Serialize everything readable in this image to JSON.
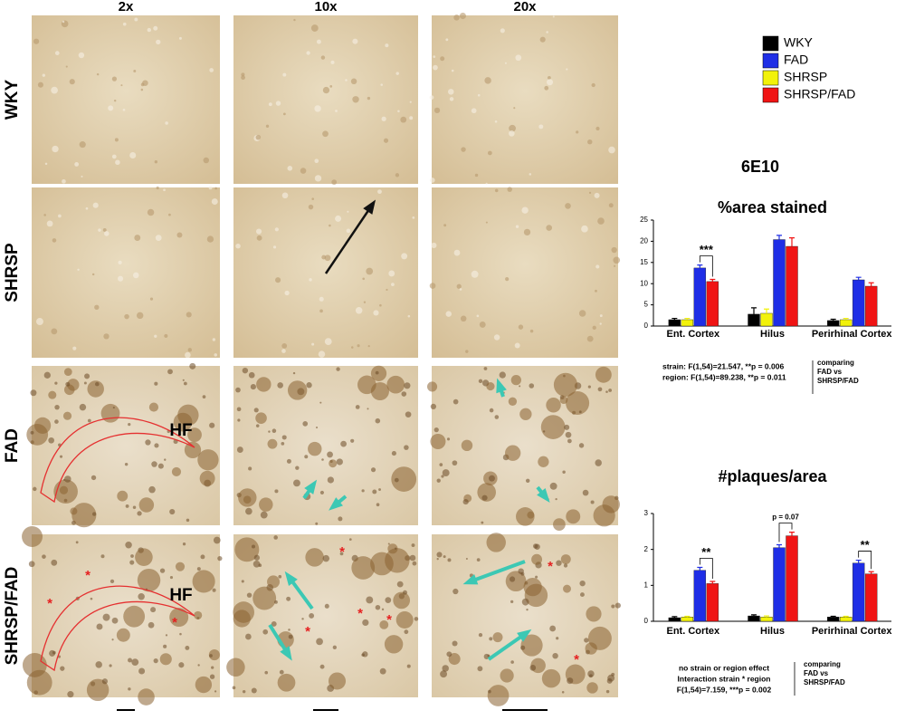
{
  "figure": {
    "title": "6E10",
    "columns": [
      "2x",
      "10x",
      "20x"
    ],
    "rows": [
      "WKY",
      "SHRSP",
      "FAD",
      "SHRSP/FAD"
    ],
    "region_label": "HF",
    "marker": "*"
  },
  "chart_data": [
    {
      "type": "bar",
      "title": "%area stained",
      "categories": [
        "Ent. Cortex",
        "Hilus",
        "Perirhinal Cortex"
      ],
      "series": [
        {
          "name": "WKY",
          "color": "#000000",
          "values": [
            1.5,
            2.8,
            1.3
          ],
          "errors": [
            0.3,
            1.5,
            0.3
          ]
        },
        {
          "name": "SHRSP",
          "color": "#f2f20a",
          "values": [
            1.5,
            3.0,
            1.5
          ],
          "errors": [
            0.3,
            1.0,
            0.3
          ]
        },
        {
          "name": "FAD",
          "color": "#1f2ee6",
          "values": [
            13.7,
            20.4,
            10.9
          ],
          "errors": [
            0.7,
            1.0,
            0.6
          ]
        },
        {
          "name": "SHRSP/FAD",
          "color": "#f01414",
          "values": [
            10.5,
            18.8,
            9.4
          ],
          "errors": [
            0.5,
            2.0,
            0.8
          ]
        }
      ],
      "ylim": [
        0,
        25
      ],
      "yticks": [
        0,
        5,
        10,
        15,
        20,
        25
      ],
      "annotations": [
        {
          "text": "***",
          "category": "Ent. Cortex"
        }
      ],
      "notes": [
        "strain: F(1,54)=21.547, **p = 0.006",
        "region: F(1,54)=89.238, **p = 0.011"
      ],
      "side_note": [
        "comparing",
        "FAD vs",
        "SHRSP/FAD"
      ]
    },
    {
      "type": "bar",
      "title": "#plaques/area",
      "categories": [
        "Ent. Cortex",
        "Hilus",
        "Perirhinal Cortex"
      ],
      "series": [
        {
          "color": "#000000",
          "values": [
            0.1,
            0.15,
            0.12
          ],
          "errors": [
            0.03,
            0.03,
            0.02
          ]
        },
        {
          "color": "#f2f20a",
          "values": [
            0.12,
            0.12,
            0.12
          ],
          "errors": [
            0.02,
            0.03,
            0.02
          ]
        },
        {
          "color": "#1f2ee6",
          "values": [
            1.42,
            2.05,
            1.62
          ],
          "errors": [
            0.08,
            0.08,
            0.08
          ]
        },
        {
          "color": "#f01414",
          "values": [
            1.05,
            2.38,
            1.32
          ],
          "errors": [
            0.06,
            0.1,
            0.06
          ]
        }
      ],
      "ylim": [
        0,
        3
      ],
      "yticks": [
        0,
        1,
        2,
        3
      ],
      "annotations": [
        {
          "text": "**",
          "category": "Ent. Cortex"
        },
        {
          "text": "p = 0.07",
          "category": "Hilus"
        },
        {
          "text": "**",
          "category": "Perirhinal Cortex"
        }
      ],
      "notes": [
        "no strain or region effect",
        "Interaction strain * region",
        "F(1,54)=7.159, ***p = 0.002"
      ],
      "side_note": [
        "comparing",
        "FAD vs",
        "SHRSP/FAD"
      ]
    }
  ]
}
